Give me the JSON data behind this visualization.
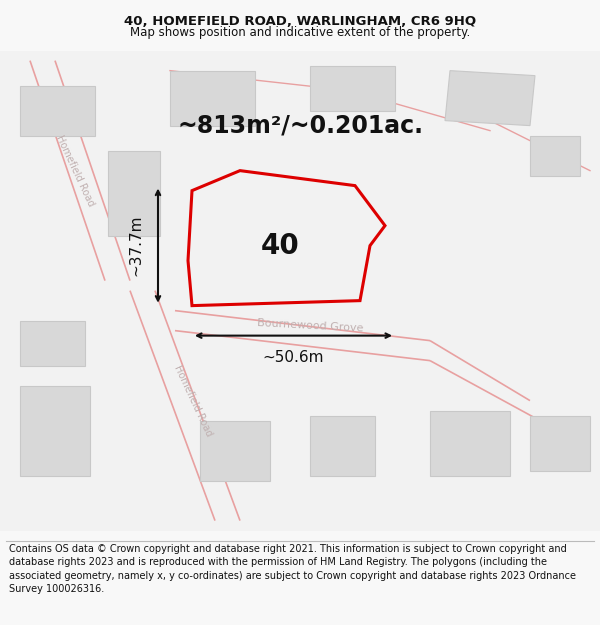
{
  "title_line1": "40, HOMEFIELD ROAD, WARLINGHAM, CR6 9HQ",
  "title_line2": "Map shows position and indicative extent of the property.",
  "area_text": "~813m²/~0.201ac.",
  "width_label": "~50.6m",
  "height_label": "~37.7m",
  "property_number": "40",
  "street_label1": "Bournewood Grove",
  "street_label2": "Homefield Road",
  "street_label3": "Homefield Road",
  "footer_text": "Contains OS data © Crown copyright and database right 2021. This information is subject to Crown copyright and database rights 2023 and is reproduced with the permission of HM Land Registry. The polygons (including the associated geometry, namely x, y co-ordinates) are subject to Crown copyright and database rights 2023 Ordnance Survey 100026316.",
  "bg_color": "#f8f8f8",
  "map_bg": "#f2f2f2",
  "road_color": "#e8a0a0",
  "building_color": "#d8d8d8",
  "building_edge": "#c8c8c8",
  "property_color": "#dd0000",
  "dim_line_color": "#111111",
  "text_color": "#111111",
  "street_text_color": "#c0b0b0"
}
